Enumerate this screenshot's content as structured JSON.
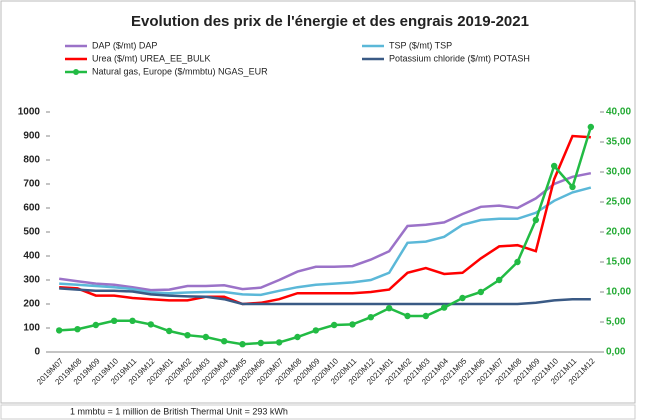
{
  "chart_data": {
    "type": "line",
    "title": "Evolution des prix de l'énergie et des engrais 2019-2021",
    "categories": [
      "2019M07",
      "2019M08",
      "2019M09",
      "2019M10",
      "2019M11",
      "2019M12",
      "2020M01",
      "2020M02",
      "2020M03",
      "2020M04",
      "2020M05",
      "2020M06",
      "2020M07",
      "2020M08",
      "2020M09",
      "2020M10",
      "2020M11",
      "2020M12",
      "2021M01",
      "2021M02",
      "2021M03",
      "2021M04",
      "2021M05",
      "2021M06",
      "2021M07",
      "2021M08",
      "2021M09",
      "2021M10",
      "2021M11",
      "2021M12"
    ],
    "series": [
      {
        "name": "DAP ($/mt) DAP",
        "color": "#9b72c8",
        "values": [
          305,
          295,
          285,
          280,
          270,
          258,
          260,
          275,
          275,
          278,
          262,
          268,
          300,
          335,
          355,
          355,
          358,
          385,
          420,
          525,
          530,
          540,
          575,
          605,
          610,
          600,
          640,
          700,
          730,
          745
        ]
      },
      {
        "name": "TSP ($/mt) TSP",
        "color": "#5bb8d8",
        "values": [
          285,
          280,
          275,
          270,
          262,
          248,
          245,
          248,
          250,
          250,
          240,
          238,
          255,
          270,
          280,
          285,
          290,
          300,
          330,
          455,
          460,
          480,
          530,
          550,
          555,
          555,
          580,
          630,
          665,
          685
        ]
      },
      {
        "name": "Urea ($/mt) UREA_EE_BULK",
        "color": "#ff0000",
        "values": [
          270,
          265,
          235,
          235,
          225,
          220,
          215,
          215,
          230,
          230,
          200,
          205,
          220,
          245,
          245,
          245,
          245,
          250,
          260,
          330,
          350,
          325,
          330,
          390,
          440,
          445,
          420,
          720,
          900,
          895
        ]
      },
      {
        "name": "Potassium chloride ($/mt) POTASH",
        "color": "#3a5a85",
        "values": [
          265,
          260,
          255,
          255,
          252,
          240,
          235,
          232,
          230,
          220,
          200,
          200,
          200,
          200,
          200,
          200,
          200,
          200,
          200,
          200,
          200,
          200,
          200,
          200,
          200,
          200,
          205,
          215,
          220,
          220
        ]
      },
      {
        "name": "Natural gas, Europe ($/mmbtu) NGAS_EUR",
        "color": "#22bb44",
        "axis": "y2",
        "markers": true,
        "values": [
          3.6,
          3.8,
          4.5,
          5.2,
          5.2,
          4.6,
          3.5,
          2.8,
          2.5,
          1.8,
          1.3,
          1.5,
          1.6,
          2.5,
          3.6,
          4.5,
          4.6,
          5.8,
          7.3,
          6.0,
          6.0,
          7.4,
          9.0,
          10.0,
          12.0,
          15.0,
          22.0,
          31.0,
          27.5,
          37.5
        ]
      }
    ],
    "ylim": [
      0,
      1000
    ],
    "yticks": [
      0,
      100,
      200,
      300,
      400,
      500,
      600,
      700,
      800,
      900,
      1000
    ],
    "y2lim": [
      0,
      40
    ],
    "y2ticks": [
      {
        "value": 0,
        "label": "0,00"
      },
      {
        "value": 5,
        "label": "5,00"
      },
      {
        "value": 10,
        "label": "10,00"
      },
      {
        "value": 15,
        "label": "15,00"
      },
      {
        "value": 20,
        "label": "20,00"
      },
      {
        "value": 25,
        "label": "25,00"
      },
      {
        "value": 30,
        "label": "30,00"
      },
      {
        "value": 35,
        "label": "35,00"
      },
      {
        "value": 40,
        "label": "40,00"
      }
    ],
    "grid": false,
    "note": "1 mmbtu = 1 million de British Thermal Unit = 293 kWh"
  }
}
